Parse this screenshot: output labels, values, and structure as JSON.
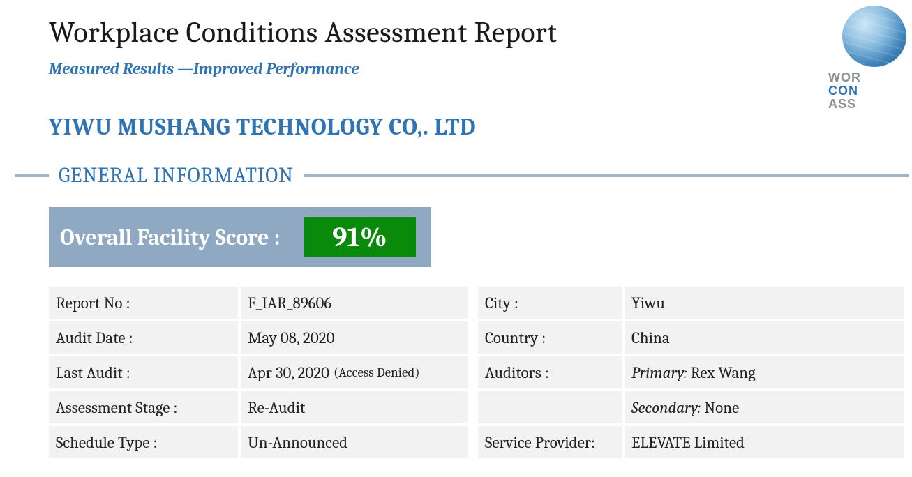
{
  "header": {
    "title": "Workplace Conditions Assessment Report",
    "subtitle": "Measured Results —Improved Performance",
    "company": "YIWU MUSHANG TECHNOLOGY CO,. LTD",
    "section_heading": "GENERAL INFORMATION"
  },
  "logo": {
    "line1": "WOR",
    "line2": "CON",
    "line3": "ASS"
  },
  "score": {
    "label": "Overall Facility Score :",
    "value": "91%",
    "box_bg": "#8ea9c1",
    "badge_bg": "#0a8a0a",
    "text_color": "#ffffff"
  },
  "info": {
    "left": [
      {
        "label": "Report No :",
        "value": "F_IAR_89606"
      },
      {
        "label": "Audit Date :",
        "value": "May 08, 2020"
      },
      {
        "label": "Last Audit :",
        "value": "Apr 30, 2020",
        "note": "(Access Denied)"
      },
      {
        "label": "Assessment Stage :",
        "value": "Re-Audit"
      },
      {
        "label": "Schedule Type :",
        "value": "Un-Announced"
      }
    ],
    "right": [
      {
        "label": "City :",
        "value": "Yiwu"
      },
      {
        "label": "Country :",
        "value": "China"
      },
      {
        "label": "Auditors :",
        "prefix": "Primary:",
        "value": "Rex Wang"
      },
      {
        "label": "",
        "prefix": "Secondary:",
        "value": "None"
      },
      {
        "label": "Service Provider:",
        "value": "ELEVATE Limited"
      }
    ]
  },
  "colors": {
    "accent": "#2f75b5",
    "rule": "#9fb4c7",
    "cell_bg": "#f2f2f2"
  }
}
